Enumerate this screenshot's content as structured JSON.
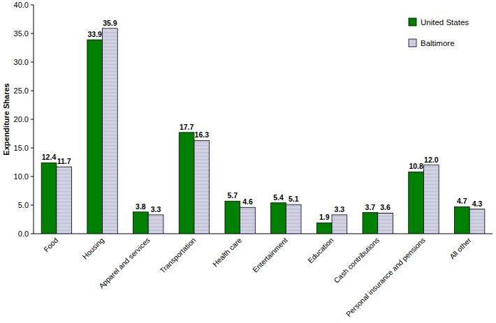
{
  "chart_data": {
    "type": "bar",
    "y_label": "Expenditure Shares",
    "categories": [
      "Food",
      "Housing",
      "Apparel and services",
      "Transportation",
      "Health care",
      "Entertainment",
      "Education",
      "Cash contributions",
      "Personal insurance and pensions",
      "All other"
    ],
    "series": [
      {
        "name": "United States",
        "color": "#008000",
        "values": [
          12.4,
          33.9,
          3.8,
          17.7,
          5.7,
          5.4,
          1.9,
          3.7,
          10.8,
          4.7
        ]
      },
      {
        "name": "Baltimore",
        "color": "#9999ff",
        "values": [
          11.7,
          35.9,
          3.3,
          16.3,
          4.6,
          5.1,
          3.3,
          3.6,
          12.0,
          4.3
        ],
        "value_labels": [
          "11.7",
          "35.9",
          "3.3",
          "16.3",
          "4.6",
          "5.1",
          "3.3",
          "3.6",
          "12.0",
          "4.3"
        ]
      }
    ],
    "ylim": [
      0,
      40
    ],
    "yticks": [
      {
        "value": 0,
        "label": "0.0"
      },
      {
        "value": 5,
        "label": "5.0"
      },
      {
        "value": 10,
        "label": "10.0"
      },
      {
        "value": 15,
        "label": "15.0"
      },
      {
        "value": 20,
        "label": "20.0"
      },
      {
        "value": 25,
        "label": "25.0"
      },
      {
        "value": 30,
        "label": "30.0"
      },
      {
        "value": 35,
        "label": "35.0"
      },
      {
        "value": 40,
        "label": "40.0"
      }
    ],
    "grid": false,
    "legend": "upper right",
    "data_labels": true
  }
}
